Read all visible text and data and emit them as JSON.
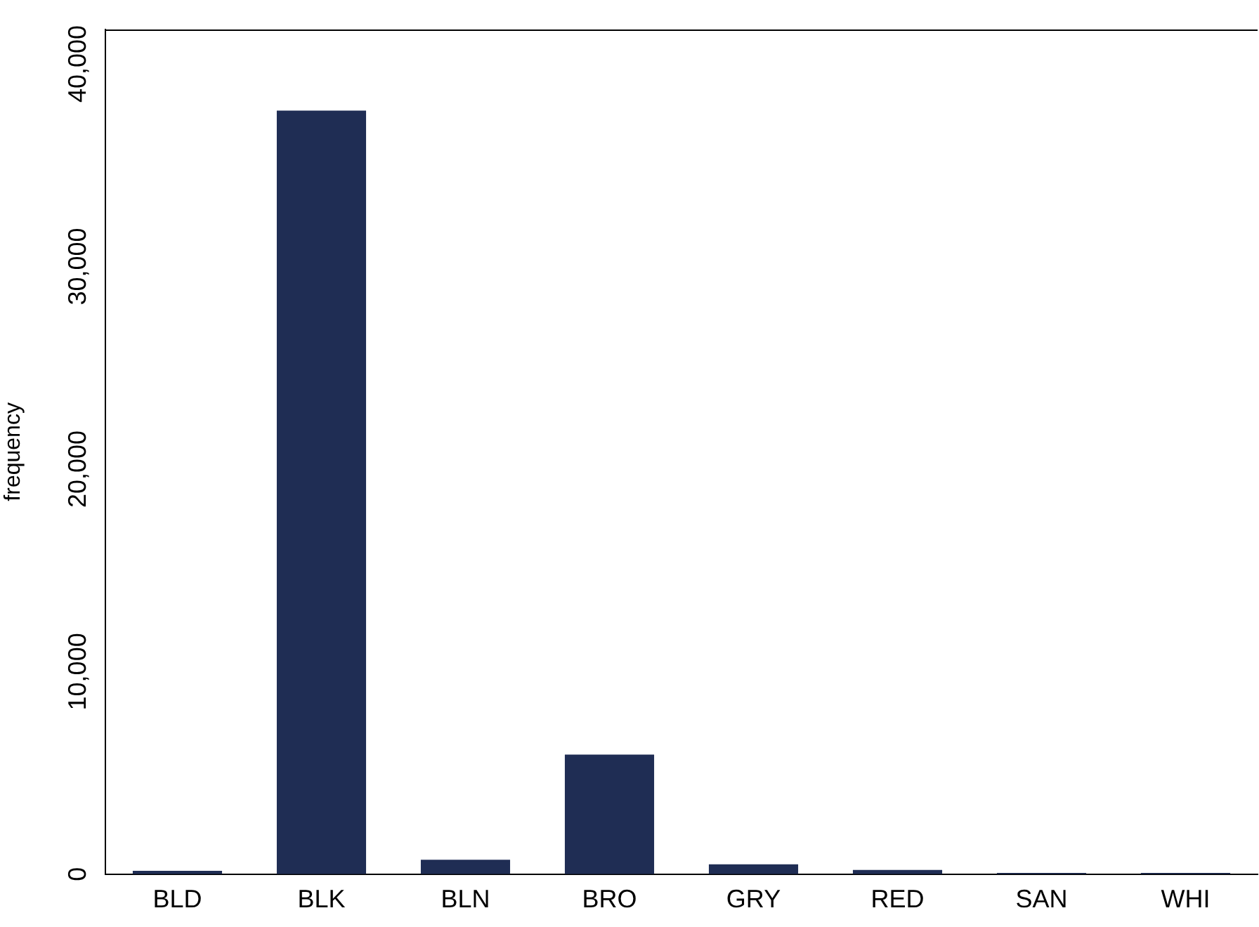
{
  "chart_data": {
    "type": "bar",
    "ylabel": "frequency",
    "categories": [
      "BLD",
      "BLK",
      "BLN",
      "BRO",
      "GRY",
      "RED",
      "SAN",
      "WHI"
    ],
    "values": [
      170,
      37700,
      710,
      5900,
      490,
      210,
      60,
      60
    ],
    "color": "#1f2d54",
    "ylim": [
      0,
      41700
    ],
    "yticks": [
      0,
      {
        "value": 10000,
        "label": "10,000"
      },
      {
        "value": 20000,
        "label": "20,000"
      },
      {
        "value": 30000,
        "label": "30,000"
      },
      {
        "value": 40000,
        "label": "40,000"
      }
    ],
    "grid": false,
    "legend": false
  }
}
